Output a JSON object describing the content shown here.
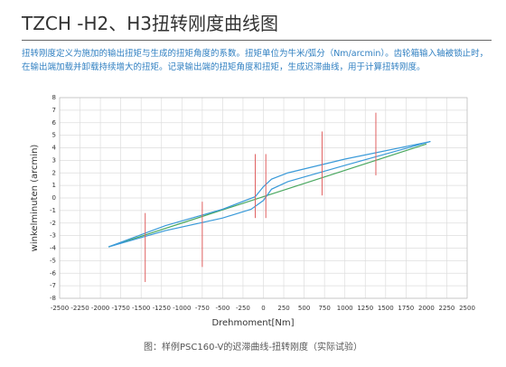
{
  "header": {
    "title": "TZCH -H2、H3扭转刚度曲线图",
    "description": "扭转刚度定义为施加的输出扭矩与生成的扭矩角度的系数。扭矩单位为牛米/弧分（Nm/arcmin）。齿轮箱输入轴被锁止时，在输出端加载并卸载持续增大的扭矩。记录输出端的扭矩角度和扭矩，生成迟滞曲线，用于计算扭转刚度。"
  },
  "chart_data": {
    "type": "line",
    "xlabel": "Drehmoment[Nm]",
    "ylabel": "winkelminuten (arcmin)",
    "caption": "图：样例PSC160-V的迟滞曲线-扭转刚度（实际试验）",
    "xlim": [
      -2500,
      2500
    ],
    "ylim": [
      -8,
      8
    ],
    "xticks": [
      -2500,
      -2250,
      -2000,
      -1750,
      -1500,
      -1250,
      -1000,
      -750,
      -500,
      -250,
      0,
      250,
      500,
      750,
      1000,
      1250,
      1500,
      1750,
      2000,
      2250,
      2500
    ],
    "yticks": [
      -8,
      -7,
      -6,
      -5,
      -4,
      -3,
      -2,
      -1,
      0,
      1,
      2,
      3,
      4,
      5,
      6,
      7,
      8
    ],
    "grid": true,
    "series": [
      {
        "color": "#4aa860",
        "x": [
          -1900,
          -1000,
          0,
          1000,
          2000
        ],
        "values": [
          -3.9,
          -2.0,
          0.1,
          2.2,
          4.3
        ]
      },
      {
        "color": "#3a9ad9",
        "x": [
          -1900,
          -1200,
          -500,
          -150,
          0,
          100,
          300,
          1000,
          2050,
          1000,
          300,
          100,
          0,
          -100,
          -500,
          -1200,
          -1900
        ],
        "values": [
          -3.9,
          -2.6,
          -1.6,
          -0.9,
          -0.2,
          0.7,
          1.3,
          2.6,
          4.5,
          3.1,
          2.0,
          1.5,
          0.9,
          0.1,
          -0.9,
          -2.2,
          -3.9
        ]
      }
    ],
    "error_bars": {
      "color": "#e06060",
      "x": [
        -1450,
        -750,
        -100,
        30,
        720,
        1380
      ],
      "low": [
        -6.7,
        -5.5,
        -1.6,
        -1.6,
        0.2,
        1.8
      ],
      "high": [
        -1.2,
        -0.3,
        3.5,
        3.5,
        5.3,
        6.8
      ]
    }
  }
}
